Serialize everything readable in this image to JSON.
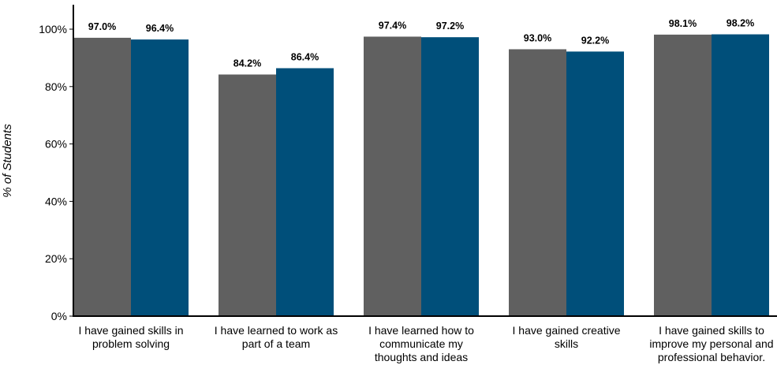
{
  "chart_data": {
    "type": "bar",
    "ylabel": "% of Students",
    "ylim": [
      0,
      100
    ],
    "y_ticks": [
      0,
      20,
      40,
      60,
      80,
      100
    ],
    "y_tick_labels": [
      "0%",
      "20%",
      "40%",
      "60%",
      "80%",
      "100%"
    ],
    "categories": [
      [
        "I have gained skills in",
        "problem solving"
      ],
      [
        "I have learned to work as",
        "part of a team"
      ],
      [
        "I have learned how to",
        "communicate my",
        "thoughts and ideas"
      ],
      [
        "I have gained creative",
        "skills"
      ],
      [
        "I have gained skills to",
        "improve my personal and",
        "professional behavior."
      ]
    ],
    "series": [
      {
        "color": "#606060",
        "values": [
          97.0,
          84.2,
          97.4,
          93.0,
          98.1
        ],
        "labels": [
          "97.0%",
          "84.2%",
          "97.4%",
          "93.0%",
          "98.1%"
        ]
      },
      {
        "color": "#004f7a",
        "values": [
          96.4,
          86.4,
          97.2,
          92.2,
          98.2
        ],
        "labels": [
          "96.4%",
          "86.4%",
          "97.2%",
          "92.2%",
          "98.2%"
        ]
      }
    ],
    "grid": false,
    "legend": "none"
  }
}
